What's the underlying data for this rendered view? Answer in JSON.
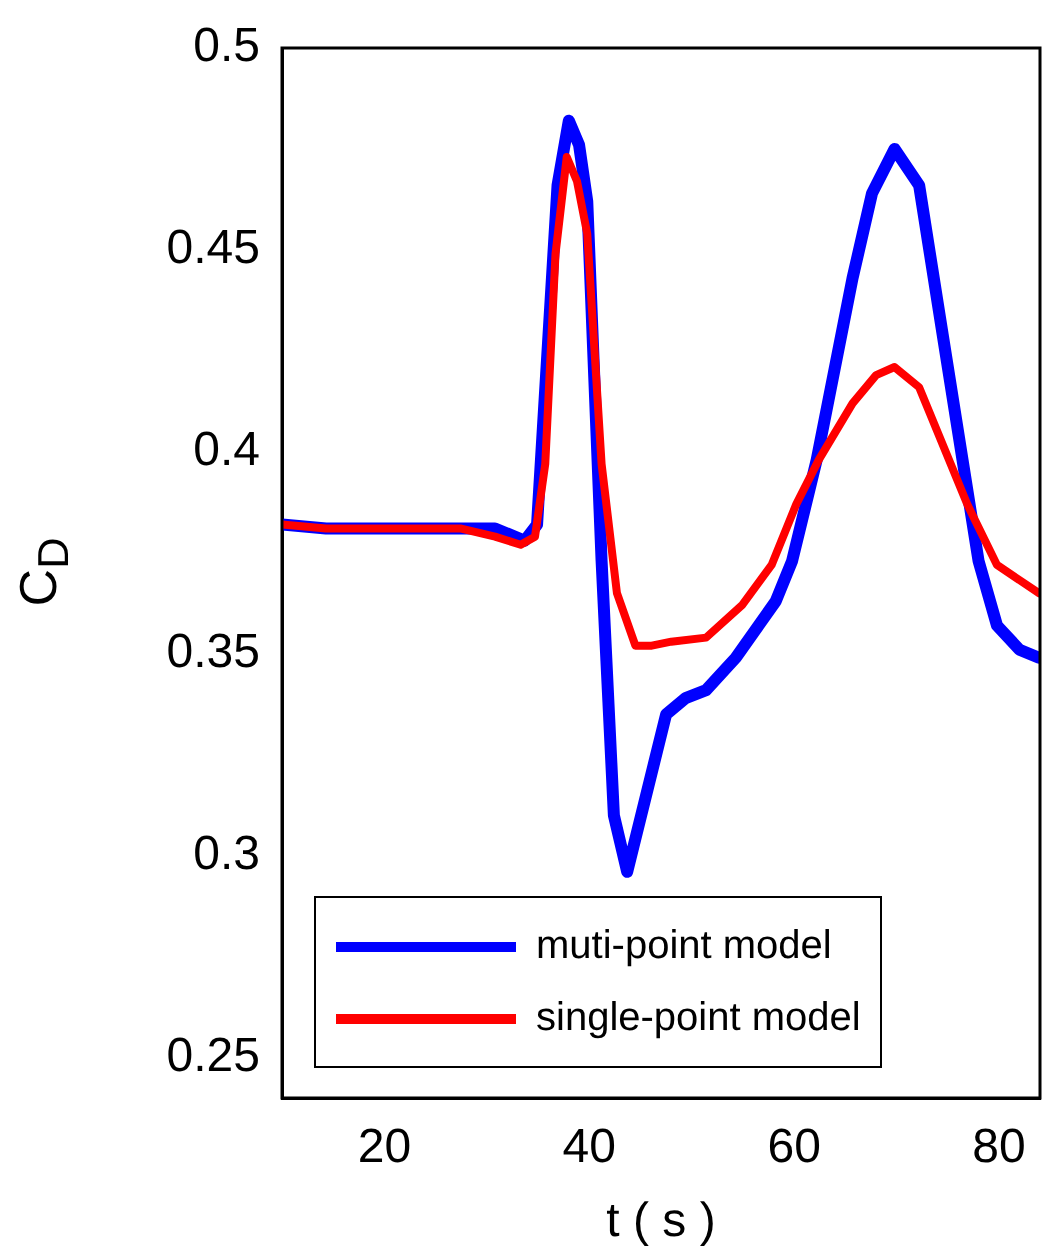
{
  "chart_data": {
    "type": "line",
    "xlabel": "t ( s )",
    "ylabel": "C$_{D}$",
    "xlim": [
      10,
      84
    ],
    "xticks": [
      20,
      40,
      60,
      80
    ],
    "ylim": [
      0.24,
      0.5
    ],
    "yticks": [
      0.25,
      0.3,
      0.35,
      0.4,
      0.45,
      0.5
    ],
    "grid": false,
    "legend": "bottom",
    "marker": "none",
    "line_style": "solid",
    "series": [
      {
        "name": "muti-point model",
        "color": "#0000ff",
        "x": [
          10,
          14.3,
          30.8,
          33.7,
          34.9,
          36.9,
          38.0,
          39.0,
          39.8,
          41.2,
          42.4,
          43.7,
          47.5,
          49.4,
          51.4,
          54.3,
          58.2,
          59.8,
          62.2,
          65.7,
          67.6,
          69.8,
          72.2,
          74.5,
          78.0,
          79.8,
          82.0,
          83.9
        ],
        "values": [
          0.382,
          0.381,
          0.381,
          0.378,
          0.382,
          0.466,
          0.482,
          0.476,
          0.462,
          0.373,
          0.31,
          0.296,
          0.335,
          0.339,
          0.341,
          0.349,
          0.363,
          0.373,
          0.398,
          0.443,
          0.464,
          0.475,
          0.466,
          0.429,
          0.373,
          0.357,
          0.351,
          0.349
        ]
      },
      {
        "name": "single-point model",
        "color": "#ff0000",
        "x": [
          10,
          14.3,
          27.5,
          30.8,
          33.3,
          34.7,
          35.7,
          36.7,
          37.8,
          38.8,
          39.8,
          41.2,
          42.7,
          44.5,
          46.1,
          48.0,
          51.4,
          54.9,
          57.8,
          60.2,
          62.4,
          65.7,
          68.0,
          69.8,
          72.2,
          76.9,
          79.8,
          83.9
        ],
        "values": [
          0.382,
          0.381,
          0.381,
          0.379,
          0.377,
          0.379,
          0.397,
          0.449,
          0.473,
          0.467,
          0.454,
          0.397,
          0.365,
          0.352,
          0.352,
          0.353,
          0.354,
          0.362,
          0.372,
          0.387,
          0.398,
          0.412,
          0.419,
          0.421,
          0.416,
          0.387,
          0.372,
          0.365
        ]
      }
    ]
  }
}
